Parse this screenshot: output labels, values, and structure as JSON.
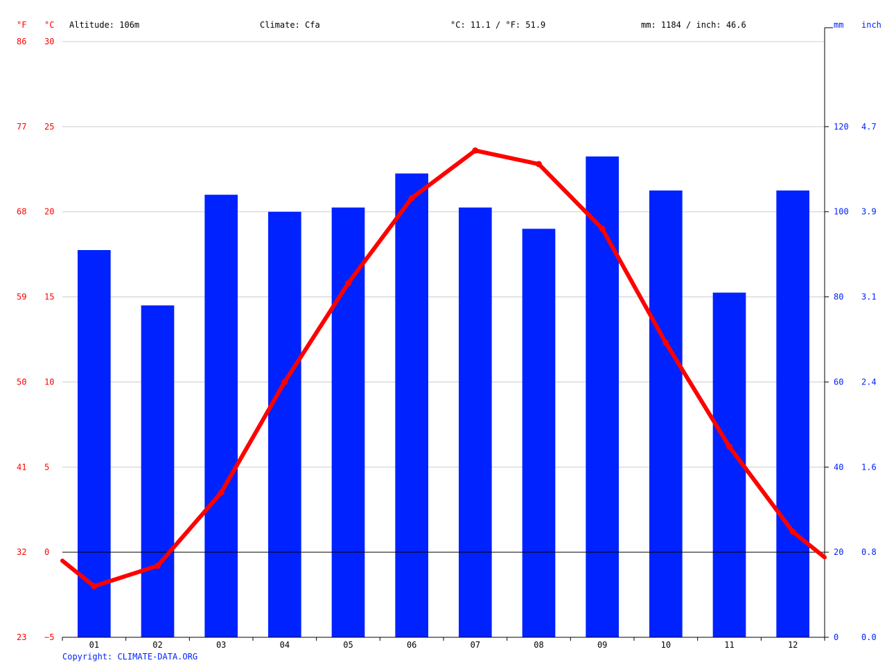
{
  "header": {
    "altitude": "Altitude: 106m",
    "climate": "Climate: Cfa",
    "temp_avg": "°C: 11.1 / °F: 51.9",
    "precip_total": "mm: 1184 / inch: 46.6"
  },
  "axes": {
    "left_f_unit": "°F",
    "left_c_unit": "°C",
    "right_mm_unit": "mm",
    "right_inch_unit": "inch",
    "celsius_ticks": [
      "30",
      "25",
      "20",
      "15",
      "10",
      "5",
      "0",
      "−5"
    ],
    "fahrenheit_ticks": [
      "86",
      "77",
      "68",
      "59",
      "50",
      "41",
      "32",
      "23"
    ],
    "mm_ticks": [
      "120",
      "100",
      "80",
      "60",
      "40",
      "20",
      "0"
    ],
    "inch_ticks": [
      "4.7",
      "3.9",
      "3.1",
      "2.4",
      "1.6",
      "0.8",
      "0.0"
    ]
  },
  "footer": {
    "copyright": "Copyright: CLIMATE-DATA.ORG"
  },
  "colors": {
    "temperature": "#ff0000",
    "precipitation": "#0022ff",
    "grid": "#cccccc"
  },
  "chart_data": {
    "type": "bar+line",
    "categories": [
      "01",
      "02",
      "03",
      "04",
      "05",
      "06",
      "07",
      "08",
      "09",
      "10",
      "11",
      "12"
    ],
    "series": [
      {
        "name": "mm",
        "type": "bar",
        "axis": "right",
        "values": [
          91,
          78,
          104,
          100,
          101,
          109,
          101,
          96,
          113,
          105,
          81,
          105
        ]
      },
      {
        "name": "°C",
        "type": "line",
        "axis": "left",
        "values": [
          -2.0,
          -0.8,
          3.5,
          10.0,
          15.8,
          20.8,
          23.6,
          22.8,
          19.0,
          12.3,
          6.2,
          1.2
        ],
        "edge_start": -0.5,
        "edge_end": -0.3
      }
    ],
    "left_ylim": [
      -5,
      30
    ],
    "right_ylim": [
      0,
      140
    ],
    "grid": true
  }
}
